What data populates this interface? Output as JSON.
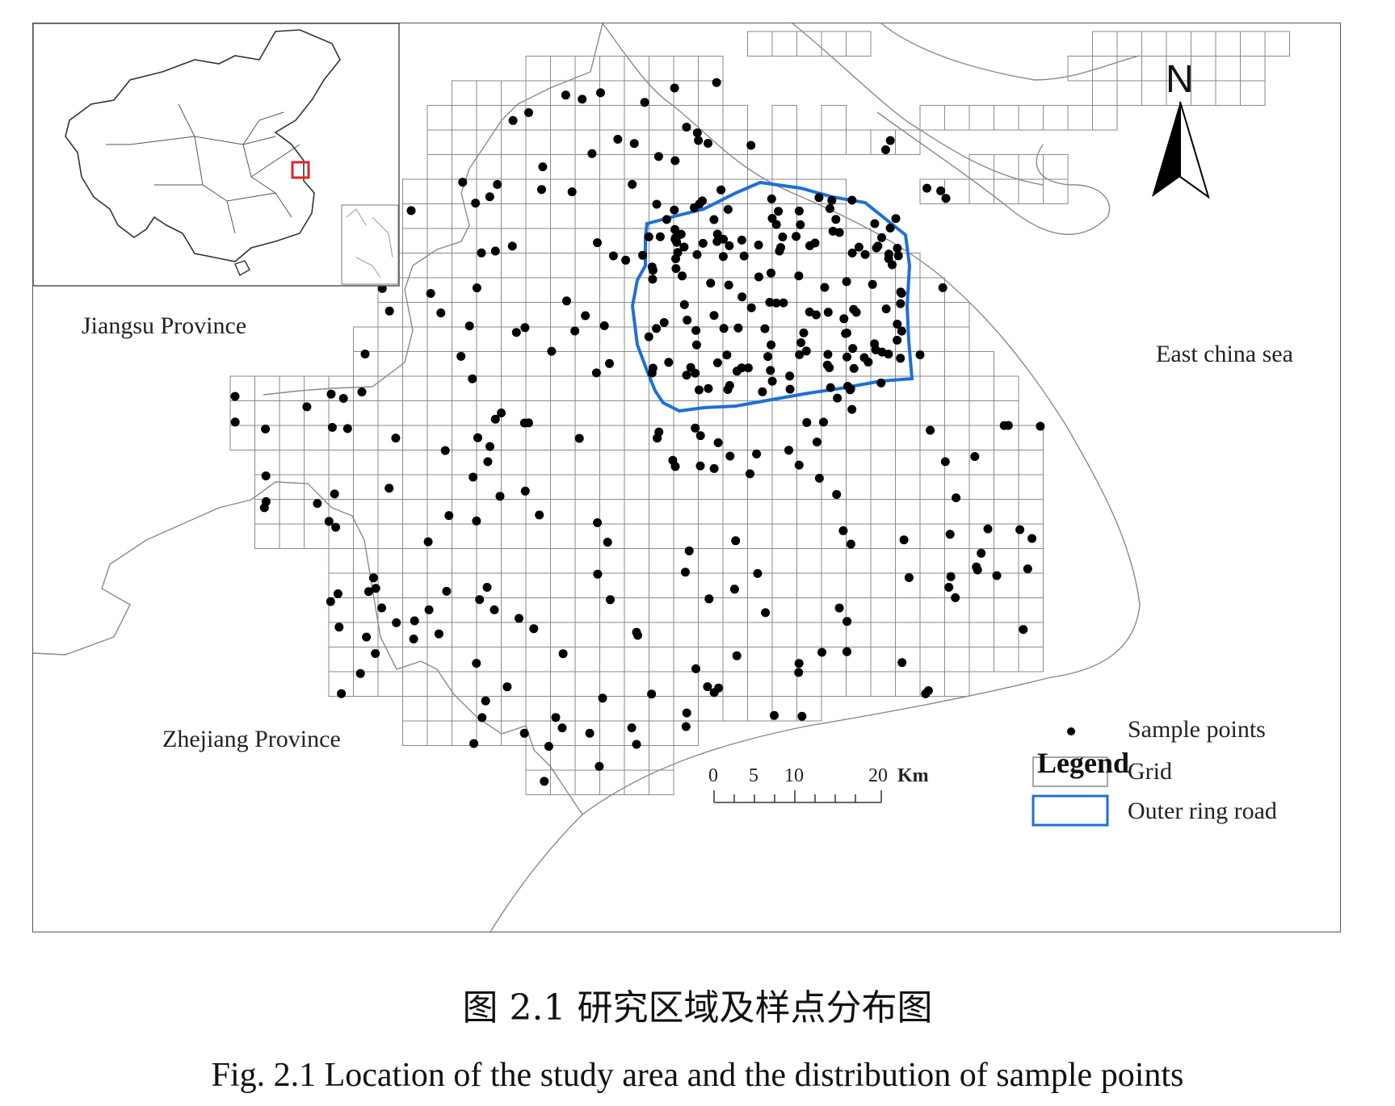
{
  "map": {
    "regions": {
      "jiangsu": "Jiangsu Province",
      "zhejiang": "Zhejiang Province",
      "sea": "East china sea"
    },
    "north_arrow": "N",
    "legend": {
      "title": "Legend",
      "items": [
        {
          "symbol": "dot",
          "label": "Sample points",
          "color": "#000000"
        },
        {
          "symbol": "square",
          "label": "Grid",
          "color": "#888888"
        },
        {
          "symbol": "line",
          "label": "Outer ring road",
          "color": "#1f6fd6"
        }
      ]
    },
    "scale_bar": {
      "ticks": [
        "0",
        "5",
        "10",
        "20"
      ],
      "unit": "Km"
    },
    "inset": {
      "highlight_color": "#e0242a"
    }
  },
  "caption": {
    "cn": "图 2.1 研究区域及样点分布图",
    "en": "Fig. 2.1 Location of the study area and the distribution of sample points"
  }
}
